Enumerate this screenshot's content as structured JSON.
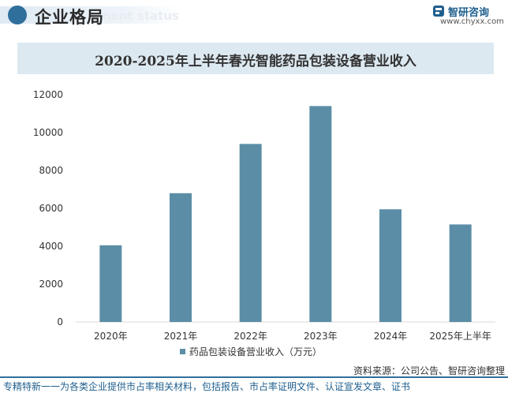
{
  "header": {
    "title": "企业格局",
    "subtitle_faded": "nent status"
  },
  "logo": {
    "name": "智研咨询",
    "url": "www.chyxx.com"
  },
  "source": "资料来源：公司公告、智研咨询整理",
  "footer": "专精特新一一为各类企业提供市占率相关材料，包括报告、市占率证明文件、认证宣发文章、证书",
  "colors": {
    "bar": "#5b8ea6",
    "accent": "#2f6f9c"
  },
  "chart_data": {
    "type": "bar",
    "title": "2020-2025年上半年春光智能药品包装设备营业收入",
    "categories": [
      "2020年",
      "2021年",
      "2022年",
      "2023年",
      "2024年",
      "2025年上半年"
    ],
    "series": [
      {
        "name": "药品包装设备营业收入（万元）",
        "values": [
          4050,
          6800,
          9400,
          11400,
          5950,
          5150
        ]
      }
    ],
    "ylim": [
      0,
      12000
    ],
    "yticks": [
      0,
      2000,
      4000,
      6000,
      8000,
      10000,
      12000
    ],
    "ytick_labels": [
      "0",
      "2000",
      "4000",
      "6000",
      "8000",
      "10000",
      "12000"
    ],
    "legend_position": "bottom-center",
    "grid": false
  }
}
